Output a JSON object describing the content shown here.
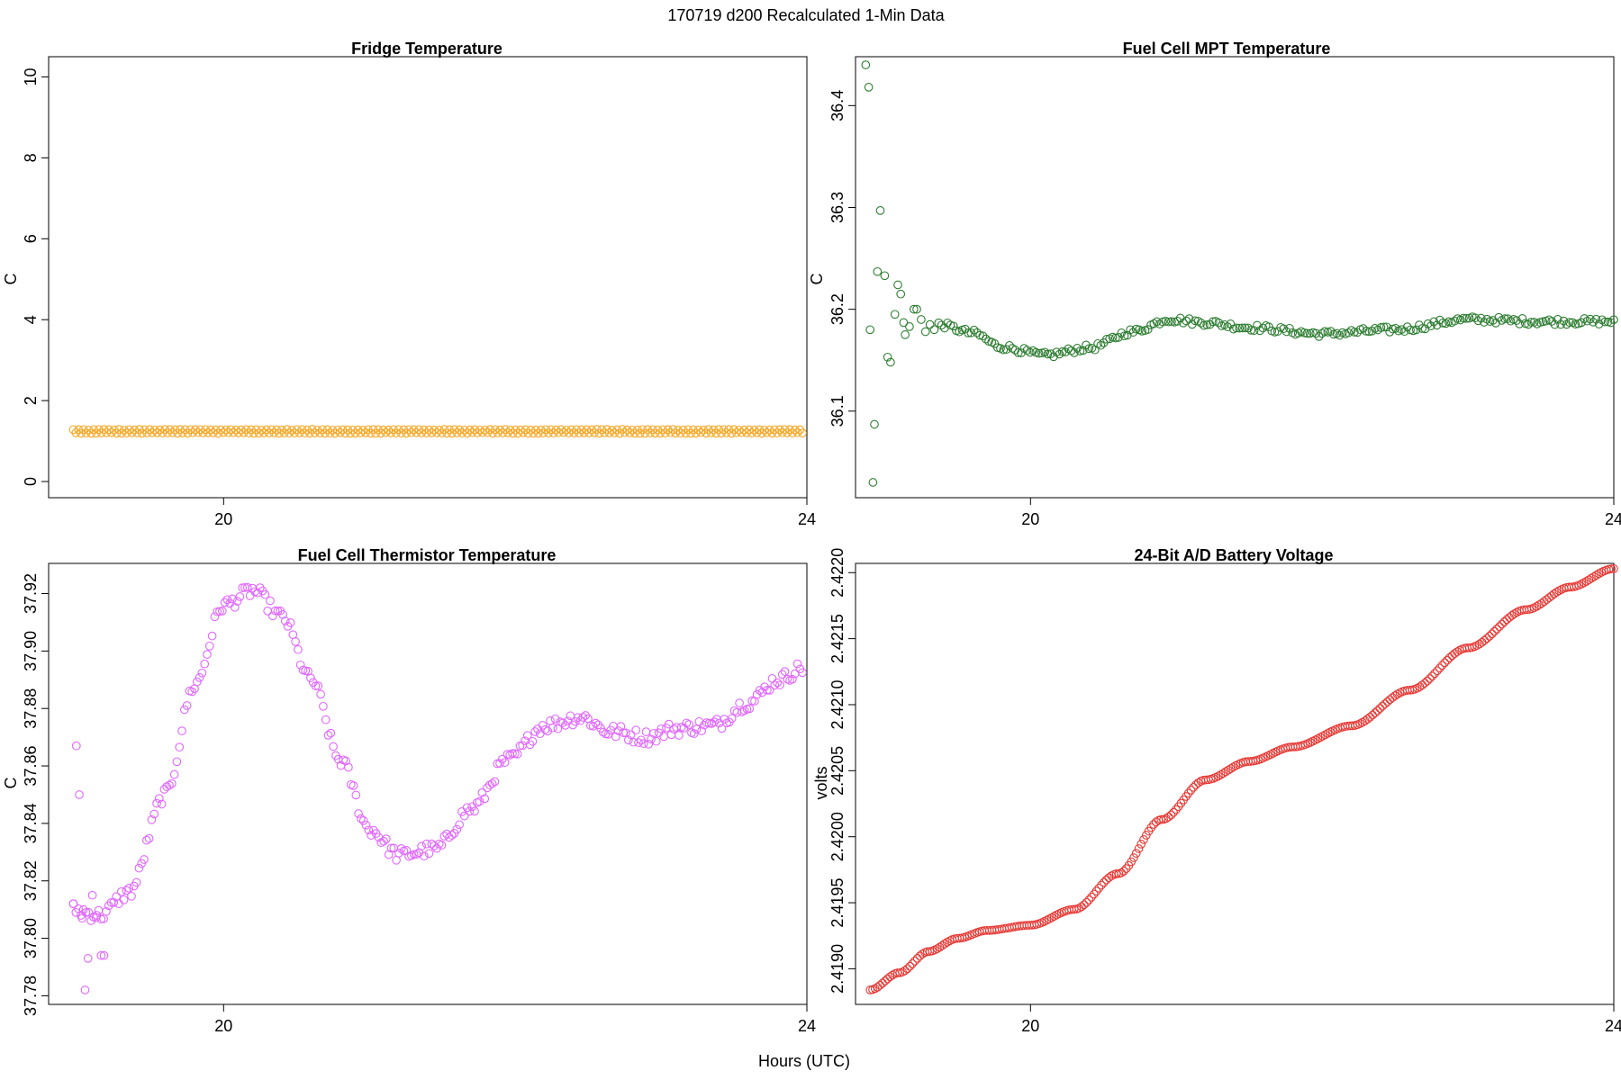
{
  "figure": {
    "title": "170719   d200   Recalculated 1-Min Data",
    "xlabel": "Hours (UTC)"
  },
  "chart_data": [
    {
      "type": "scatter",
      "title": "Fridge Temperature",
      "ylabel": "C",
      "xlim": [
        18.8,
        24.0
      ],
      "ylim": [
        -0.4,
        10.5
      ],
      "xticks": [
        20,
        24
      ],
      "yticks": [
        0,
        2,
        4,
        6,
        8,
        10
      ],
      "ytick_labels": [
        "0",
        "2",
        "4",
        "6",
        "8",
        "10"
      ],
      "color": "#f5a623",
      "series_model": "oscillating",
      "n_points": 288,
      "x_range": [
        18.97,
        23.97
      ],
      "base": 1.24,
      "amplitude": 0.05,
      "notable_points": []
    },
    {
      "type": "scatter",
      "title": "Fuel Cell MPT Temperature",
      "ylabel": "C",
      "xlim": [
        18.8,
        24.0
      ],
      "ylim": [
        36.015,
        36.448
      ],
      "xticks": [
        20,
        24
      ],
      "yticks": [
        36.1,
        36.2,
        36.3,
        36.4
      ],
      "ytick_labels": [
        "36.1",
        "36.2",
        "36.3",
        "36.4"
      ],
      "color": "#2e7d32",
      "series_model": "curve",
      "n_points": 230,
      "x_range": [
        19.37,
        24.0
      ],
      "curve": [
        [
          19.37,
          36.185
        ],
        [
          19.6,
          36.177
        ],
        [
          19.8,
          36.163
        ],
        [
          20.1,
          36.155
        ],
        [
          20.4,
          36.162
        ],
        [
          20.7,
          36.178
        ],
        [
          20.95,
          36.19
        ],
        [
          21.2,
          36.187
        ],
        [
          21.5,
          36.182
        ],
        [
          22.0,
          36.176
        ],
        [
          22.5,
          36.18
        ],
        [
          23.0,
          36.19
        ],
        [
          23.5,
          36.188
        ],
        [
          24.0,
          36.188
        ]
      ],
      "noise": 0.003,
      "notable_points": [
        [
          18.87,
          36.44
        ],
        [
          18.89,
          36.418
        ],
        [
          18.9,
          36.18
        ],
        [
          18.92,
          36.03
        ],
        [
          18.93,
          36.087
        ],
        [
          18.95,
          36.237
        ],
        [
          18.97,
          36.297
        ],
        [
          19.0,
          36.233
        ],
        [
          19.02,
          36.153
        ],
        [
          19.04,
          36.148
        ],
        [
          19.07,
          36.195
        ],
        [
          19.09,
          36.224
        ],
        [
          19.11,
          36.215
        ],
        [
          19.13,
          36.187
        ],
        [
          19.14,
          36.175
        ],
        [
          19.17,
          36.183
        ],
        [
          19.2,
          36.2
        ],
        [
          19.22,
          36.2
        ],
        [
          19.25,
          36.19
        ],
        [
          19.28,
          36.178
        ],
        [
          19.31,
          36.185
        ],
        [
          19.34,
          36.18
        ]
      ]
    },
    {
      "type": "scatter",
      "title": "Fuel Cell Thermistor Temperature",
      "ylabel": "C",
      "xlim": [
        18.8,
        24.0
      ],
      "ylim": [
        37.777,
        37.9305
      ],
      "xticks": [
        20,
        24
      ],
      "yticks": [
        37.78,
        37.8,
        37.82,
        37.84,
        37.86,
        37.88,
        37.9,
        37.92
      ],
      "ytick_labels": [
        "37.78",
        "37.80",
        "37.82",
        "37.84",
        "37.86",
        "37.88",
        "37.90",
        "37.92"
      ],
      "color": "#e066ff",
      "series_model": "curve",
      "n_points": 290,
      "x_range": [
        18.97,
        23.97
      ],
      "curve": [
        [
          18.97,
          37.81
        ],
        [
          19.15,
          37.808
        ],
        [
          19.35,
          37.816
        ],
        [
          19.6,
          37.85
        ],
        [
          19.8,
          37.888
        ],
        [
          20.0,
          37.916
        ],
        [
          20.2,
          37.921
        ],
        [
          20.4,
          37.912
        ],
        [
          20.6,
          37.89
        ],
        [
          20.8,
          37.862
        ],
        [
          21.0,
          37.838
        ],
        [
          21.2,
          37.829
        ],
        [
          21.45,
          37.831
        ],
        [
          21.7,
          37.845
        ],
        [
          21.95,
          37.862
        ],
        [
          22.2,
          37.874
        ],
        [
          22.45,
          37.877
        ],
        [
          22.65,
          37.872
        ],
        [
          22.9,
          37.87
        ],
        [
          23.1,
          37.873
        ],
        [
          23.35,
          37.874
        ],
        [
          23.6,
          37.882
        ],
        [
          23.8,
          37.89
        ],
        [
          23.97,
          37.894
        ]
      ],
      "noise": 0.0025,
      "notable_points": [
        [
          18.97,
          37.812
        ],
        [
          18.99,
          37.867
        ],
        [
          19.01,
          37.85
        ],
        [
          19.03,
          37.807
        ],
        [
          19.05,
          37.782
        ],
        [
          19.07,
          37.793
        ],
        [
          19.1,
          37.815
        ],
        [
          19.13,
          37.808
        ],
        [
          19.16,
          37.794
        ],
        [
          19.18,
          37.794
        ]
      ]
    },
    {
      "type": "scatter",
      "title": "24-Bit A/D Battery Voltage",
      "ylabel": "volts",
      "xlim": [
        18.8,
        24.0
      ],
      "ylim": [
        2.41873,
        2.42207
      ],
      "xticks": [
        20,
        24
      ],
      "yticks": [
        2.419,
        2.4195,
        2.42,
        2.4205,
        2.421,
        2.4215,
        2.422
      ],
      "ytick_labels": [
        "2.4190",
        "2.4195",
        "2.4200",
        "2.4205",
        "2.4210",
        "2.4215",
        "2.4220"
      ],
      "color": "#e53935",
      "series_model": "curve",
      "n_points": 300,
      "x_range": [
        18.9,
        24.0
      ],
      "curve": [
        [
          18.9,
          2.41884
        ],
        [
          19.1,
          2.41897
        ],
        [
          19.3,
          2.41913
        ],
        [
          19.5,
          2.41923
        ],
        [
          19.7,
          2.41929
        ],
        [
          20.0,
          2.41933
        ],
        [
          20.3,
          2.41945
        ],
        [
          20.6,
          2.41972
        ],
        [
          20.9,
          2.42013
        ],
        [
          21.2,
          2.42043
        ],
        [
          21.5,
          2.42057
        ],
        [
          21.8,
          2.42068
        ],
        [
          22.2,
          2.42084
        ],
        [
          22.6,
          2.42111
        ],
        [
          23.0,
          2.42143
        ],
        [
          23.4,
          2.42172
        ],
        [
          23.7,
          2.42189
        ],
        [
          24.0,
          2.42203
        ]
      ],
      "noise": 0.0,
      "notable_points": []
    }
  ]
}
